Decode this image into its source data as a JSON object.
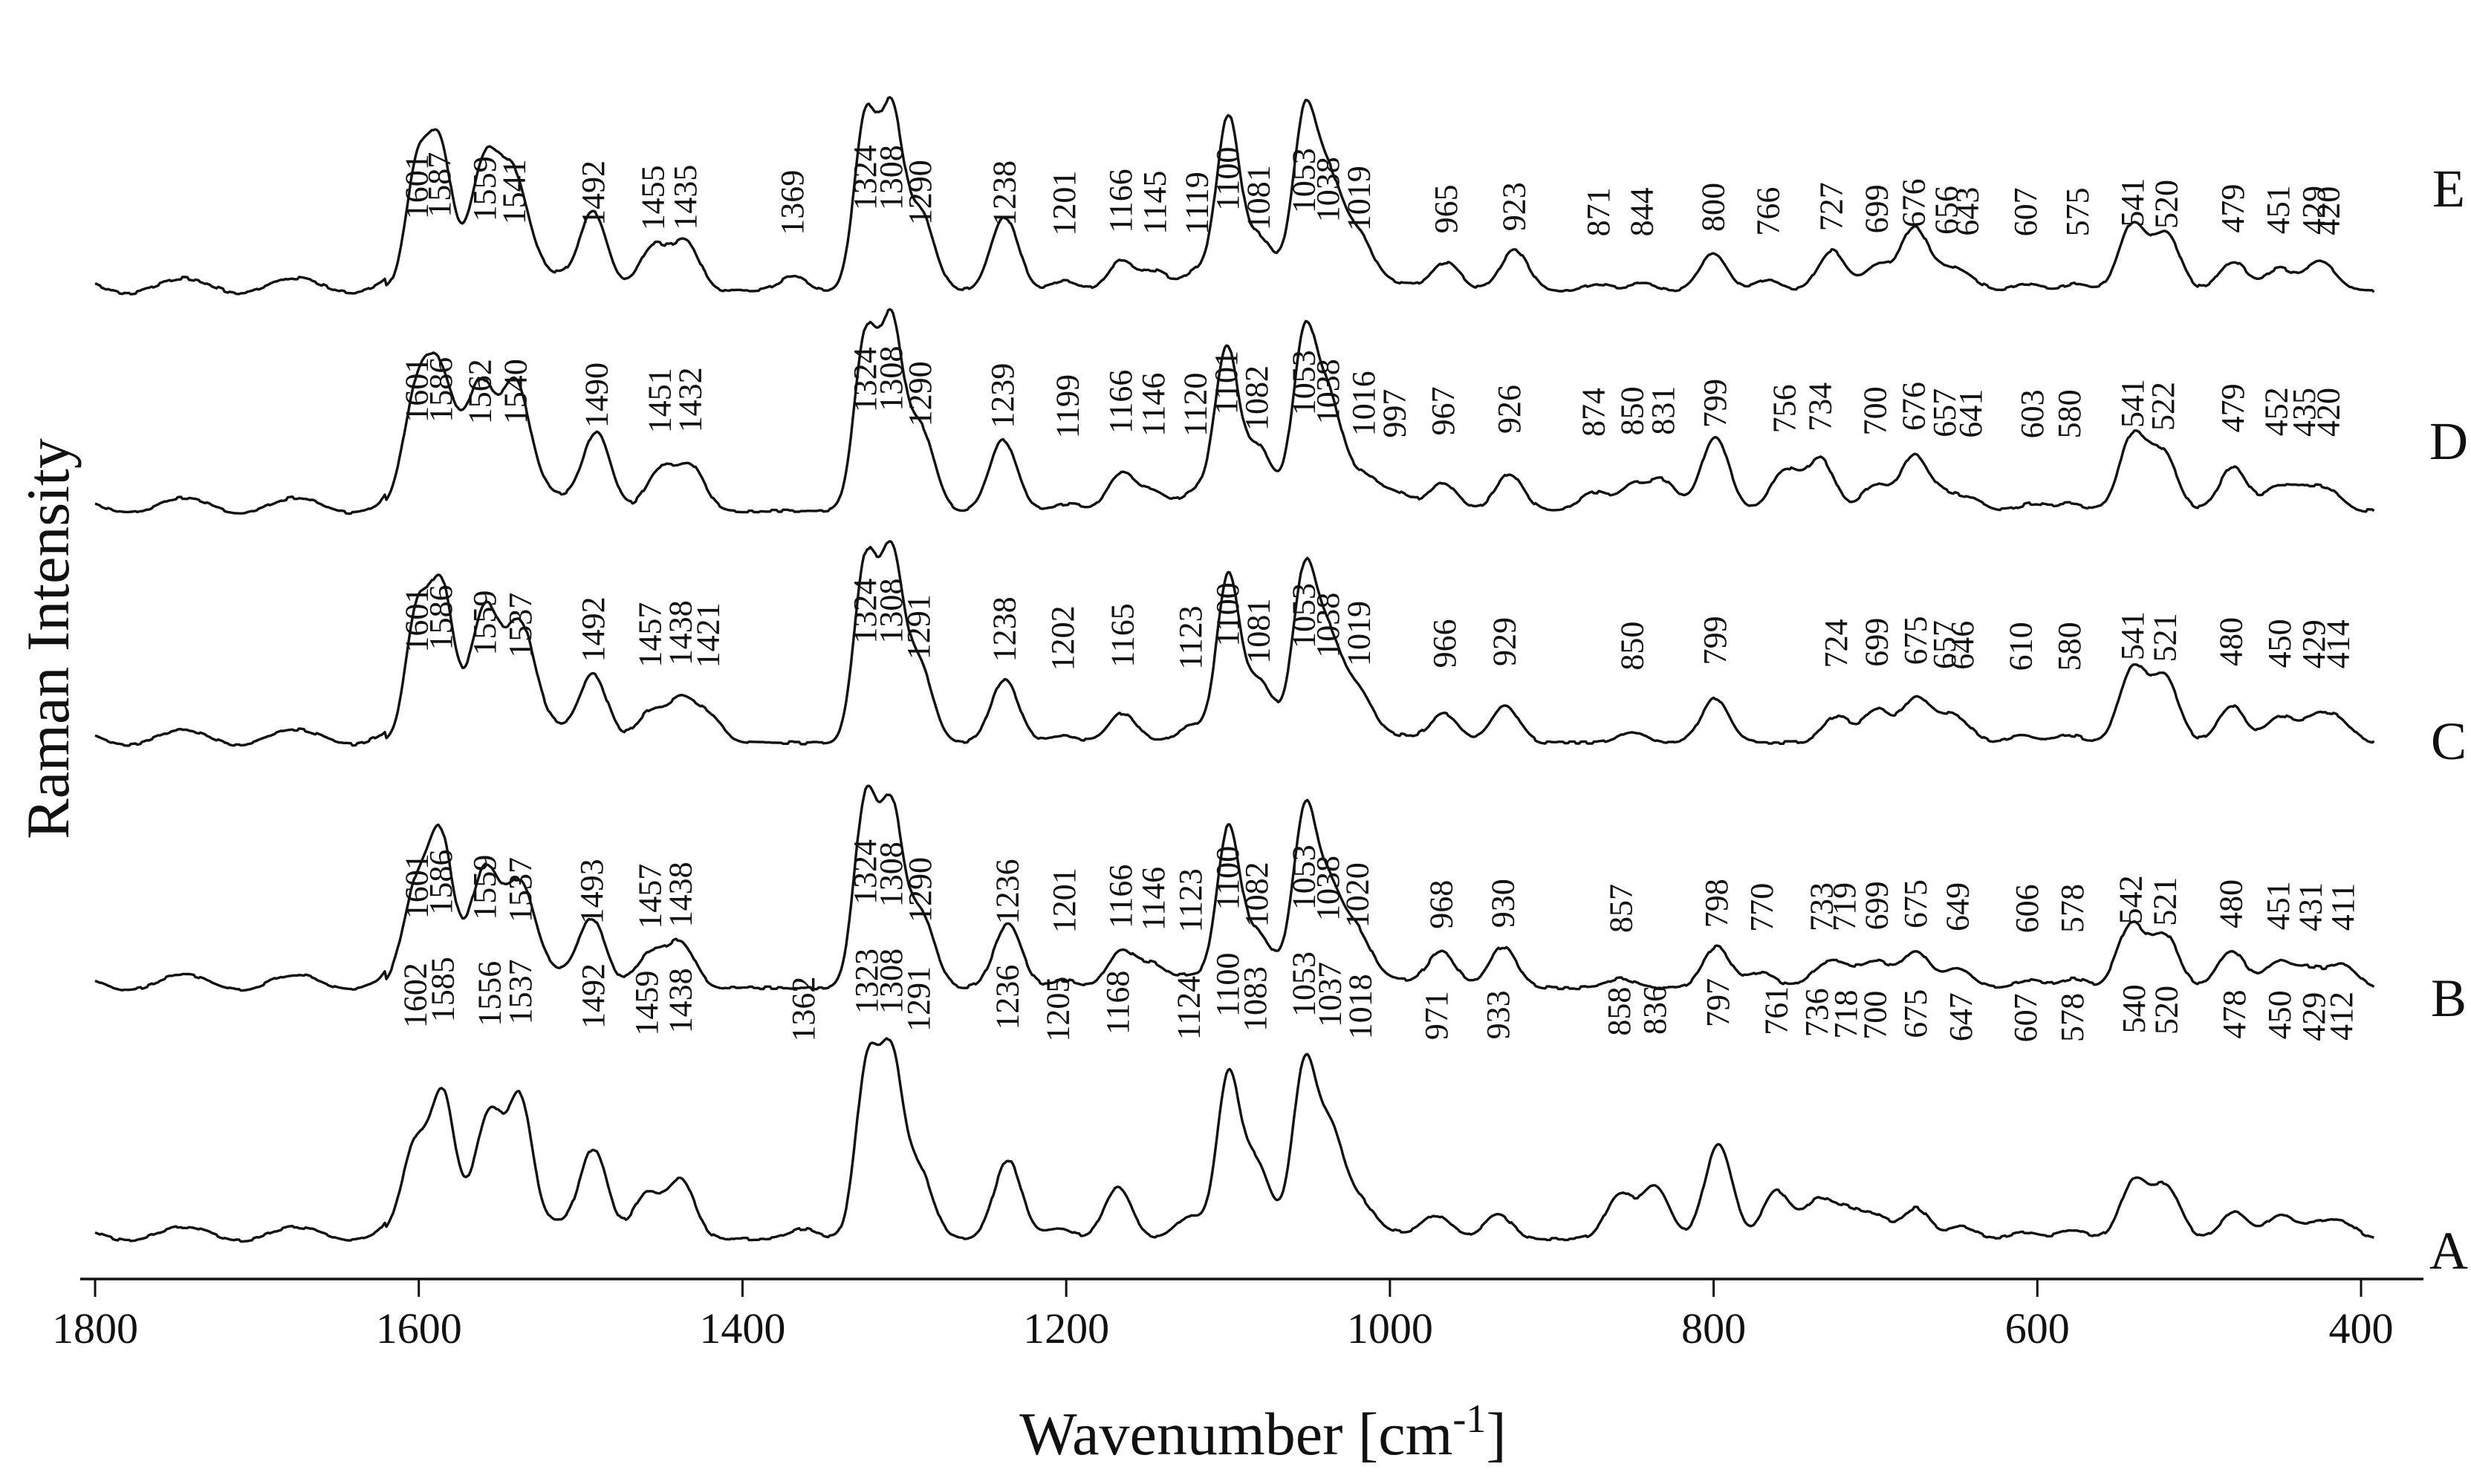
{
  "chart_data": {
    "type": "line",
    "xlabel": "Wavenumber [cm",
    "xlabel_sup": "-1",
    "xlabel_close": "]",
    "ylabel": "Raman Intensity",
    "xlim": [
      1800,
      400
    ],
    "x_reversed": true,
    "x_ticks": [
      "1800",
      "1600",
      "1400",
      "1200",
      "1000",
      "800",
      "600",
      "400"
    ],
    "grid": false,
    "series": [
      {
        "name": "A",
        "peaks": [
          {
            "x": 1602,
            "h": 0.52,
            "label": "1602"
          },
          {
            "x": 1585,
            "h": 0.72,
            "label": "1585"
          },
          {
            "x": 1556,
            "h": 0.58,
            "label": "1556"
          },
          {
            "x": 1537,
            "h": 0.64,
            "label": "1537"
          },
          {
            "x": 1492,
            "h": 0.5,
            "label": "1492"
          },
          {
            "x": 1459,
            "h": 0.26,
            "label": "1459"
          },
          {
            "x": 1438,
            "h": 0.34,
            "label": "1438"
          },
          {
            "x": 1362,
            "h": 0.06,
            "label": "1362"
          },
          {
            "x": 1323,
            "h": 1.0,
            "label": "1323"
          },
          {
            "x": 1308,
            "h": 1.0,
            "label": "1308"
          },
          {
            "x": 1291,
            "h": 0.4,
            "label": "1291"
          },
          {
            "x": 1236,
            "h": 0.46,
            "label": "1236"
          },
          {
            "x": 1205,
            "h": 0.06,
            "label": "1205"
          },
          {
            "x": 1168,
            "h": 0.3,
            "label": "1168"
          },
          {
            "x": 1124,
            "h": 0.12,
            "label": "1124"
          },
          {
            "x": 1100,
            "h": 0.9,
            "label": "1100"
          },
          {
            "x": 1083,
            "h": 0.4,
            "label": "1083"
          },
          {
            "x": 1053,
            "h": 0.9,
            "label": "1053"
          },
          {
            "x": 1037,
            "h": 0.55,
            "label": "1037"
          },
          {
            "x": 1018,
            "h": 0.14,
            "label": "1018"
          },
          {
            "x": 971,
            "h": 0.12,
            "label": "971"
          },
          {
            "x": 933,
            "h": 0.14,
            "label": "933"
          },
          {
            "x": 858,
            "h": 0.26,
            "label": "858"
          },
          {
            "x": 836,
            "h": 0.3,
            "label": "836"
          },
          {
            "x": 797,
            "h": 0.55,
            "label": "797"
          },
          {
            "x": 761,
            "h": 0.28,
            "label": "761"
          },
          {
            "x": 736,
            "h": 0.22,
            "label": "736"
          },
          {
            "x": 718,
            "h": 0.16,
            "label": "718"
          },
          {
            "x": 700,
            "h": 0.13,
            "label": "700"
          },
          {
            "x": 675,
            "h": 0.18,
            "label": "675"
          },
          {
            "x": 647,
            "h": 0.07,
            "label": "647"
          },
          {
            "x": 607,
            "h": 0.04,
            "label": "607"
          },
          {
            "x": 578,
            "h": 0.05,
            "label": "578"
          },
          {
            "x": 540,
            "h": 0.34,
            "label": "540"
          },
          {
            "x": 520,
            "h": 0.3,
            "label": "520"
          },
          {
            "x": 478,
            "h": 0.16,
            "label": "478"
          },
          {
            "x": 450,
            "h": 0.14,
            "label": "450"
          },
          {
            "x": 429,
            "h": 0.08,
            "label": "429"
          },
          {
            "x": 412,
            "h": 0.1,
            "label": "412"
          }
        ]
      },
      {
        "name": "B",
        "peaks": [
          {
            "x": 1601,
            "h": 0.52,
            "label": "1601"
          },
          {
            "x": 1586,
            "h": 0.66,
            "label": "1586"
          },
          {
            "x": 1559,
            "h": 0.48,
            "label": "1559"
          },
          {
            "x": 1537,
            "h": 0.4,
            "label": "1537"
          },
          {
            "x": 1493,
            "h": 0.34,
            "label": "1493"
          },
          {
            "x": 1457,
            "h": 0.18,
            "label": "1457"
          },
          {
            "x": 1438,
            "h": 0.24,
            "label": "1438"
          },
          {
            "x": 1324,
            "h": 1.0,
            "label": "1324"
          },
          {
            "x": 1308,
            "h": 0.92,
            "label": "1308"
          },
          {
            "x": 1290,
            "h": 0.4,
            "label": "1290"
          },
          {
            "x": 1236,
            "h": 0.34,
            "label": "1236"
          },
          {
            "x": 1201,
            "h": 0.04,
            "label": "1201"
          },
          {
            "x": 1166,
            "h": 0.2,
            "label": "1166"
          },
          {
            "x": 1146,
            "h": 0.12,
            "label": "1146"
          },
          {
            "x": 1123,
            "h": 0.06,
            "label": "1123"
          },
          {
            "x": 1100,
            "h": 0.82,
            "label": "1100"
          },
          {
            "x": 1082,
            "h": 0.24,
            "label": "1082"
          },
          {
            "x": 1053,
            "h": 0.82,
            "label": "1053"
          },
          {
            "x": 1038,
            "h": 0.45,
            "label": "1038"
          },
          {
            "x": 1020,
            "h": 0.22,
            "label": "1020"
          },
          {
            "x": 968,
            "h": 0.18,
            "label": "968"
          },
          {
            "x": 930,
            "h": 0.22,
            "label": "930"
          },
          {
            "x": 857,
            "h": 0.05,
            "label": "857"
          },
          {
            "x": 798,
            "h": 0.22,
            "label": "798"
          },
          {
            "x": 770,
            "h": 0.08,
            "label": "770"
          },
          {
            "x": 733,
            "h": 0.1,
            "label": "733"
          },
          {
            "x": 719,
            "h": 0.1,
            "label": "719"
          },
          {
            "x": 699,
            "h": 0.14,
            "label": "699"
          },
          {
            "x": 675,
            "h": 0.2,
            "label": "675"
          },
          {
            "x": 649,
            "h": 0.1,
            "label": "649"
          },
          {
            "x": 606,
            "h": 0.04,
            "label": "606"
          },
          {
            "x": 578,
            "h": 0.05,
            "label": "578"
          },
          {
            "x": 542,
            "h": 0.34,
            "label": "542"
          },
          {
            "x": 521,
            "h": 0.28,
            "label": "521"
          },
          {
            "x": 480,
            "h": 0.2,
            "label": "480"
          },
          {
            "x": 451,
            "h": 0.14,
            "label": "451"
          },
          {
            "x": 431,
            "h": 0.1,
            "label": "431"
          },
          {
            "x": 411,
            "h": 0.12,
            "label": "411"
          }
        ]
      },
      {
        "name": "C",
        "peaks": [
          {
            "x": 1601,
            "h": 0.66,
            "label": "1601"
          },
          {
            "x": 1586,
            "h": 0.74,
            "label": "1586"
          },
          {
            "x": 1559,
            "h": 0.56,
            "label": "1559"
          },
          {
            "x": 1537,
            "h": 0.48,
            "label": "1537"
          },
          {
            "x": 1492,
            "h": 0.34,
            "label": "1492"
          },
          {
            "x": 1457,
            "h": 0.16,
            "label": "1457"
          },
          {
            "x": 1438,
            "h": 0.22,
            "label": "1438"
          },
          {
            "x": 1421,
            "h": 0.14,
            "label": "1421"
          },
          {
            "x": 1324,
            "h": 0.96,
            "label": "1324"
          },
          {
            "x": 1308,
            "h": 0.96,
            "label": "1308"
          },
          {
            "x": 1291,
            "h": 0.42,
            "label": "1291"
          },
          {
            "x": 1238,
            "h": 0.34,
            "label": "1238"
          },
          {
            "x": 1202,
            "h": 0.04,
            "label": "1202"
          },
          {
            "x": 1165,
            "h": 0.16,
            "label": "1165"
          },
          {
            "x": 1123,
            "h": 0.08,
            "label": "1123"
          },
          {
            "x": 1100,
            "h": 0.86,
            "label": "1100"
          },
          {
            "x": 1081,
            "h": 0.28,
            "label": "1081"
          },
          {
            "x": 1053,
            "h": 0.8,
            "label": "1053"
          },
          {
            "x": 1038,
            "h": 0.48,
            "label": "1038"
          },
          {
            "x": 1019,
            "h": 0.2,
            "label": "1019"
          },
          {
            "x": 966,
            "h": 0.14,
            "label": "966"
          },
          {
            "x": 929,
            "h": 0.2,
            "label": "929"
          },
          {
            "x": 850,
            "h": 0.06,
            "label": "850"
          },
          {
            "x": 799,
            "h": 0.24,
            "label": "799"
          },
          {
            "x": 724,
            "h": 0.14,
            "label": "724"
          },
          {
            "x": 699,
            "h": 0.18,
            "label": "699"
          },
          {
            "x": 675,
            "h": 0.24,
            "label": "675"
          },
          {
            "x": 657,
            "h": 0.1,
            "label": "657"
          },
          {
            "x": 646,
            "h": 0.08,
            "label": "646"
          },
          {
            "x": 610,
            "h": 0.04,
            "label": "610"
          },
          {
            "x": 580,
            "h": 0.04,
            "label": "580"
          },
          {
            "x": 541,
            "h": 0.4,
            "label": "541"
          },
          {
            "x": 521,
            "h": 0.34,
            "label": "521"
          },
          {
            "x": 480,
            "h": 0.2,
            "label": "480"
          },
          {
            "x": 450,
            "h": 0.14,
            "label": "450"
          },
          {
            "x": 429,
            "h": 0.12,
            "label": "429"
          },
          {
            "x": 414,
            "h": 0.12,
            "label": "414"
          }
        ]
      },
      {
        "name": "D",
        "peaks": [
          {
            "x": 1601,
            "h": 0.58,
            "label": "1601"
          },
          {
            "x": 1586,
            "h": 0.58,
            "label": "1586"
          },
          {
            "x": 1562,
            "h": 0.52,
            "label": "1562"
          },
          {
            "x": 1540,
            "h": 0.52,
            "label": "1540"
          },
          {
            "x": 1490,
            "h": 0.4,
            "label": "1490"
          },
          {
            "x": 1451,
            "h": 0.22,
            "label": "1451"
          },
          {
            "x": 1432,
            "h": 0.24,
            "label": "1432"
          },
          {
            "x": 1324,
            "h": 0.92,
            "label": "1324"
          },
          {
            "x": 1308,
            "h": 0.96,
            "label": "1308"
          },
          {
            "x": 1290,
            "h": 0.44,
            "label": "1290"
          },
          {
            "x": 1239,
            "h": 0.38,
            "label": "1239"
          },
          {
            "x": 1199,
            "h": 0.04,
            "label": "1199"
          },
          {
            "x": 1166,
            "h": 0.2,
            "label": "1166"
          },
          {
            "x": 1146,
            "h": 0.1,
            "label": "1146"
          },
          {
            "x": 1120,
            "h": 0.1,
            "label": "1120"
          },
          {
            "x": 1101,
            "h": 0.84,
            "label": "1101"
          },
          {
            "x": 1082,
            "h": 0.3,
            "label": "1082"
          },
          {
            "x": 1053,
            "h": 0.82,
            "label": "1053"
          },
          {
            "x": 1038,
            "h": 0.52,
            "label": "1038"
          },
          {
            "x": 1016,
            "h": 0.12,
            "label": "1016"
          },
          {
            "x": 997,
            "h": 0.06,
            "label": "997"
          },
          {
            "x": 967,
            "h": 0.14,
            "label": "967"
          },
          {
            "x": 926,
            "h": 0.2,
            "label": "926"
          },
          {
            "x": 874,
            "h": 0.1,
            "label": "874"
          },
          {
            "x": 850,
            "h": 0.14,
            "label": "850"
          },
          {
            "x": 831,
            "h": 0.16,
            "label": "831"
          },
          {
            "x": 799,
            "h": 0.4,
            "label": "799"
          },
          {
            "x": 756,
            "h": 0.22,
            "label": "756"
          },
          {
            "x": 734,
            "h": 0.28,
            "label": "734"
          },
          {
            "x": 700,
            "h": 0.14,
            "label": "700"
          },
          {
            "x": 676,
            "h": 0.3,
            "label": "676"
          },
          {
            "x": 657,
            "h": 0.08,
            "label": "657"
          },
          {
            "x": 641,
            "h": 0.06,
            "label": "641"
          },
          {
            "x": 603,
            "h": 0.04,
            "label": "603"
          },
          {
            "x": 580,
            "h": 0.04,
            "label": "580"
          },
          {
            "x": 541,
            "h": 0.4,
            "label": "541"
          },
          {
            "x": 522,
            "h": 0.3,
            "label": "522"
          },
          {
            "x": 479,
            "h": 0.24,
            "label": "479"
          },
          {
            "x": 452,
            "h": 0.12,
            "label": "452"
          },
          {
            "x": 435,
            "h": 0.1,
            "label": "435"
          },
          {
            "x": 420,
            "h": 0.1,
            "label": "420"
          }
        ]
      },
      {
        "name": "E",
        "peaks": [
          {
            "x": 1601,
            "h": 0.62,
            "label": "1601"
          },
          {
            "x": 1587,
            "h": 0.68,
            "label": "1587"
          },
          {
            "x": 1559,
            "h": 0.54,
            "label": "1559"
          },
          {
            "x": 1541,
            "h": 0.44,
            "label": "1541"
          },
          {
            "x": 1492,
            "h": 0.4,
            "label": "1492"
          },
          {
            "x": 1455,
            "h": 0.24,
            "label": "1455"
          },
          {
            "x": 1435,
            "h": 0.26,
            "label": "1435"
          },
          {
            "x": 1369,
            "h": 0.08,
            "label": "1369"
          },
          {
            "x": 1324,
            "h": 0.92,
            "label": "1324"
          },
          {
            "x": 1308,
            "h": 0.92,
            "label": "1308"
          },
          {
            "x": 1290,
            "h": 0.42,
            "label": "1290"
          },
          {
            "x": 1238,
            "h": 0.4,
            "label": "1238"
          },
          {
            "x": 1201,
            "h": 0.06,
            "label": "1201"
          },
          {
            "x": 1166,
            "h": 0.16,
            "label": "1166"
          },
          {
            "x": 1145,
            "h": 0.1,
            "label": "1145"
          },
          {
            "x": 1119,
            "h": 0.1,
            "label": "1119"
          },
          {
            "x": 1100,
            "h": 0.9,
            "label": "1100"
          },
          {
            "x": 1081,
            "h": 0.24,
            "label": "1081"
          },
          {
            "x": 1053,
            "h": 0.82,
            "label": "1053"
          },
          {
            "x": 1038,
            "h": 0.52,
            "label": "1038"
          },
          {
            "x": 1019,
            "h": 0.22,
            "label": "1019"
          },
          {
            "x": 965,
            "h": 0.14,
            "label": "965"
          },
          {
            "x": 923,
            "h": 0.22,
            "label": "923"
          },
          {
            "x": 871,
            "h": 0.04,
            "label": "871"
          },
          {
            "x": 844,
            "h": 0.04,
            "label": "844"
          },
          {
            "x": 800,
            "h": 0.2,
            "label": "800"
          },
          {
            "x": 766,
            "h": 0.06,
            "label": "766"
          },
          {
            "x": 727,
            "h": 0.22,
            "label": "727"
          },
          {
            "x": 699,
            "h": 0.14,
            "label": "699"
          },
          {
            "x": 676,
            "h": 0.34,
            "label": "676"
          },
          {
            "x": 656,
            "h": 0.1,
            "label": "656"
          },
          {
            "x": 643,
            "h": 0.06,
            "label": "643"
          },
          {
            "x": 607,
            "h": 0.04,
            "label": "607"
          },
          {
            "x": 575,
            "h": 0.04,
            "label": "575"
          },
          {
            "x": 541,
            "h": 0.36,
            "label": "541"
          },
          {
            "x": 520,
            "h": 0.3,
            "label": "520"
          },
          {
            "x": 479,
            "h": 0.16,
            "label": "479"
          },
          {
            "x": 451,
            "h": 0.12,
            "label": "451"
          },
          {
            "x": 429,
            "h": 0.1,
            "label": "429"
          },
          {
            "x": 420,
            "h": 0.08,
            "label": "420"
          }
        ]
      }
    ]
  }
}
